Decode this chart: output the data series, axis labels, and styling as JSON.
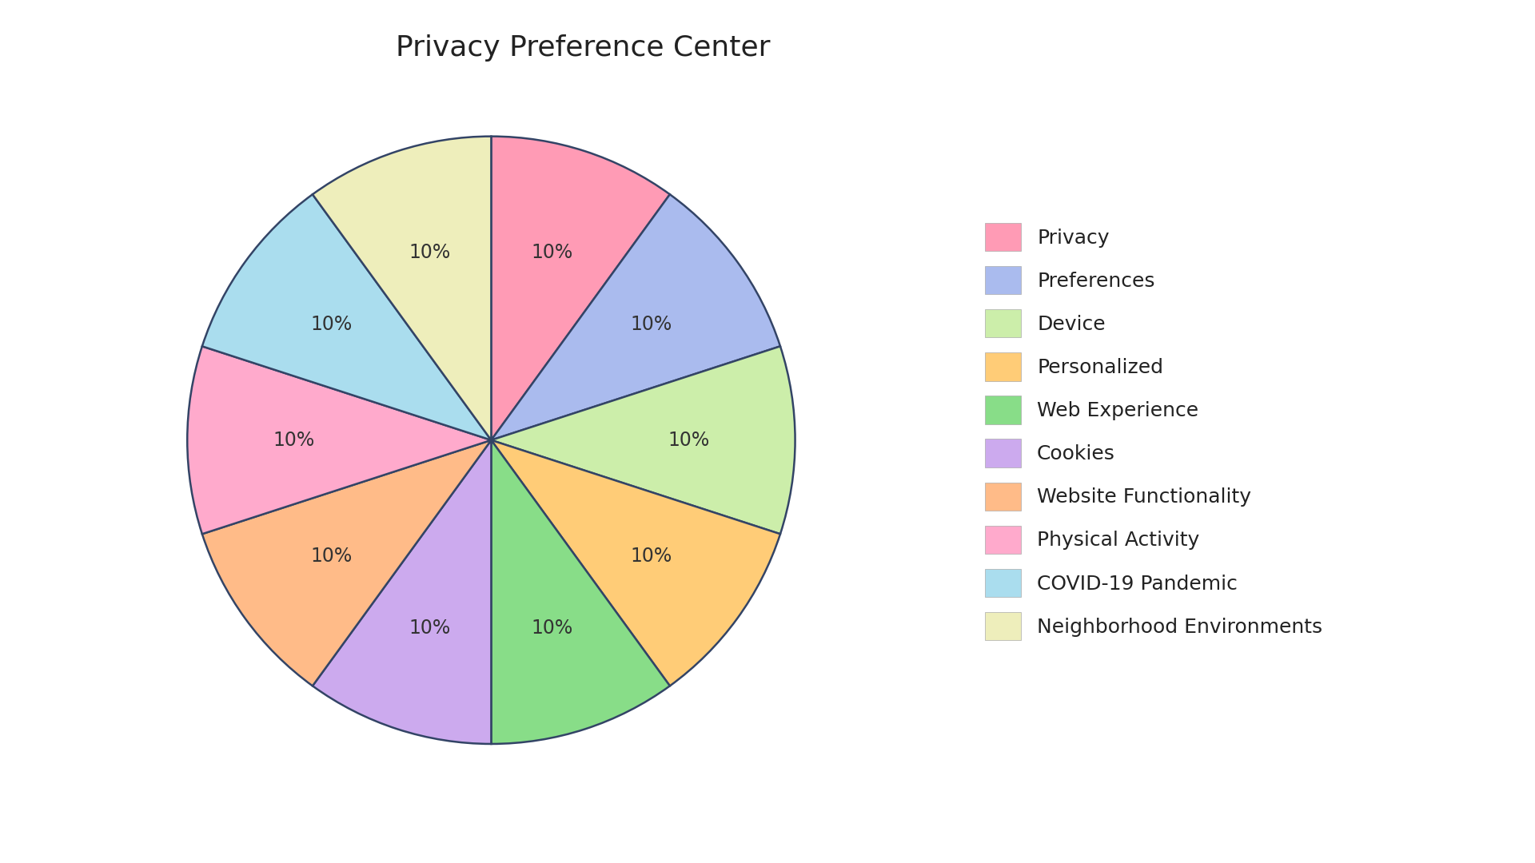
{
  "title": "Privacy Preference Center",
  "labels": [
    "Privacy",
    "Preferences",
    "Device",
    "Personalized",
    "Web Experience",
    "Cookies",
    "Website Functionality",
    "Physical Activity",
    "COVID-19 Pandemic",
    "Neighborhood Environments"
  ],
  "values": [
    10,
    10,
    10,
    10,
    10,
    10,
    10,
    10,
    10,
    10
  ],
  "colors": [
    "#FF9BB5",
    "#AABBEE",
    "#CCEEAA",
    "#FFCC77",
    "#88DD88",
    "#CCAAEE",
    "#FFBB88",
    "#FFAACC",
    "#AADDEE",
    "#EEEEBB"
  ],
  "edge_color": "#334466",
  "edge_width": 1.8,
  "title_fontsize": 26,
  "label_fontsize": 17,
  "legend_fontsize": 18,
  "background_color": "#FFFFFF",
  "startangle": 90
}
